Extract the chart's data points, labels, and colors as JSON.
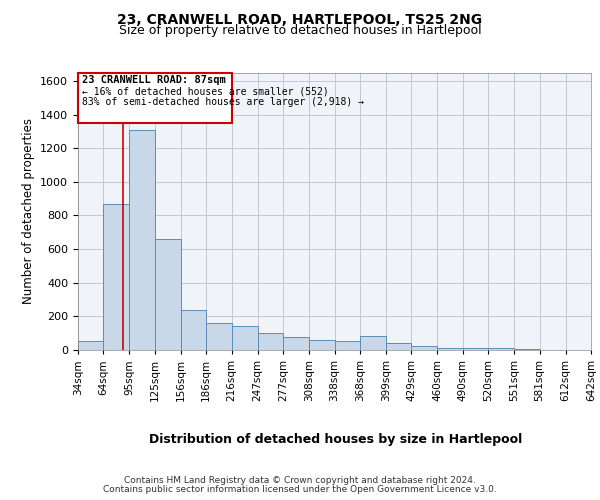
{
  "title1": "23, CRANWELL ROAD, HARTLEPOOL, TS25 2NG",
  "title2": "Size of property relative to detached houses in Hartlepool",
  "xlabel": "Distribution of detached houses by size in Hartlepool",
  "ylabel": "Number of detached properties",
  "annotation_title": "23 CRANWELL ROAD: 87sqm",
  "annotation_line1": "← 16% of detached houses are smaller (552)",
  "annotation_line2": "83% of semi-detached houses are larger (2,918) →",
  "property_size_sqm": 87,
  "bin_edges": [
    34,
    64,
    95,
    125,
    156,
    186,
    216,
    247,
    277,
    308,
    338,
    368,
    399,
    429,
    460,
    490,
    520,
    551,
    581,
    612,
    642
  ],
  "bar_heights": [
    55,
    870,
    1310,
    660,
    235,
    160,
    145,
    100,
    80,
    60,
    55,
    85,
    40,
    25,
    10,
    10,
    10,
    5,
    2,
    2
  ],
  "bar_color": "#c8d8e8",
  "bar_edge_color": "#5b8db8",
  "grid_color": "#c0c8d8",
  "vline_color": "#cc0000",
  "box_edge_color": "#cc0000",
  "background_color": "#f0f4f8",
  "ylim": [
    0,
    1650
  ],
  "yticks": [
    0,
    200,
    400,
    600,
    800,
    1000,
    1200,
    1400,
    1600
  ],
  "footer1": "Contains HM Land Registry data © Crown copyright and database right 2024.",
  "footer2": "Contains public sector information licensed under the Open Government Licence v3.0."
}
